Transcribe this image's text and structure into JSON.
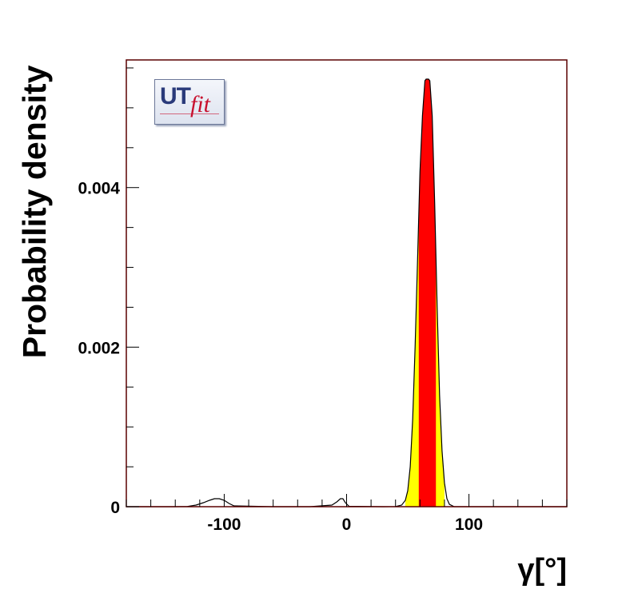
{
  "chart_data": {
    "type": "area",
    "xlabel": "γ[°]",
    "ylabel": "Probability density",
    "xlim": [
      -180,
      180
    ],
    "ylim": [
      0,
      0.0056
    ],
    "x_ticks": [
      -100,
      0,
      100
    ],
    "x_tick_labels": [
      "-100",
      "0",
      "100"
    ],
    "y_ticks": [
      0,
      0.002,
      0.004
    ],
    "y_tick_labels": [
      "0",
      "0.002",
      "0.004"
    ],
    "grid": false,
    "series": [
      {
        "x": [
          -180,
          -140,
          -130,
          -123,
          -117,
          -112,
          -108,
          -104,
          -100,
          -96,
          -92,
          -60,
          -30,
          -12,
          -8,
          -5,
          -3,
          -1,
          2,
          30,
          40,
          45,
          48,
          50,
          52,
          54,
          56,
          58,
          60,
          62,
          64,
          65,
          66,
          67,
          68,
          70,
          72,
          74,
          76,
          78,
          80,
          82,
          84,
          88,
          100,
          180
        ],
        "y": [
          0,
          0,
          3e-06,
          2e-05,
          5e-05,
          8e-05,
          0.0001,
          0.0001,
          8e-05,
          4e-05,
          1e-05,
          0,
          0,
          2e-05,
          6e-05,
          0.0001,
          0.0001,
          5e-05,
          5e-06,
          0,
          2e-06,
          2e-05,
          8e-05,
          0.0002,
          0.0005,
          0.0011,
          0.002,
          0.0031,
          0.0042,
          0.0049,
          0.00534,
          0.00536,
          0.00536,
          0.00536,
          0.00534,
          0.0049,
          0.0038,
          0.0025,
          0.0014,
          0.0007,
          0.0003,
          0.0001,
          3e-05,
          0,
          0,
          0
        ]
      }
    ],
    "bands": [
      {
        "from": 48,
        "to": 80,
        "color": "#ffff00"
      },
      {
        "from": 59,
        "to": 73,
        "color": "#ff0000"
      }
    ],
    "colors": {
      "curve": "#000000",
      "frame": "#5a0000"
    }
  },
  "logo": {
    "text_ut": "UT",
    "text_fit": "fit"
  }
}
